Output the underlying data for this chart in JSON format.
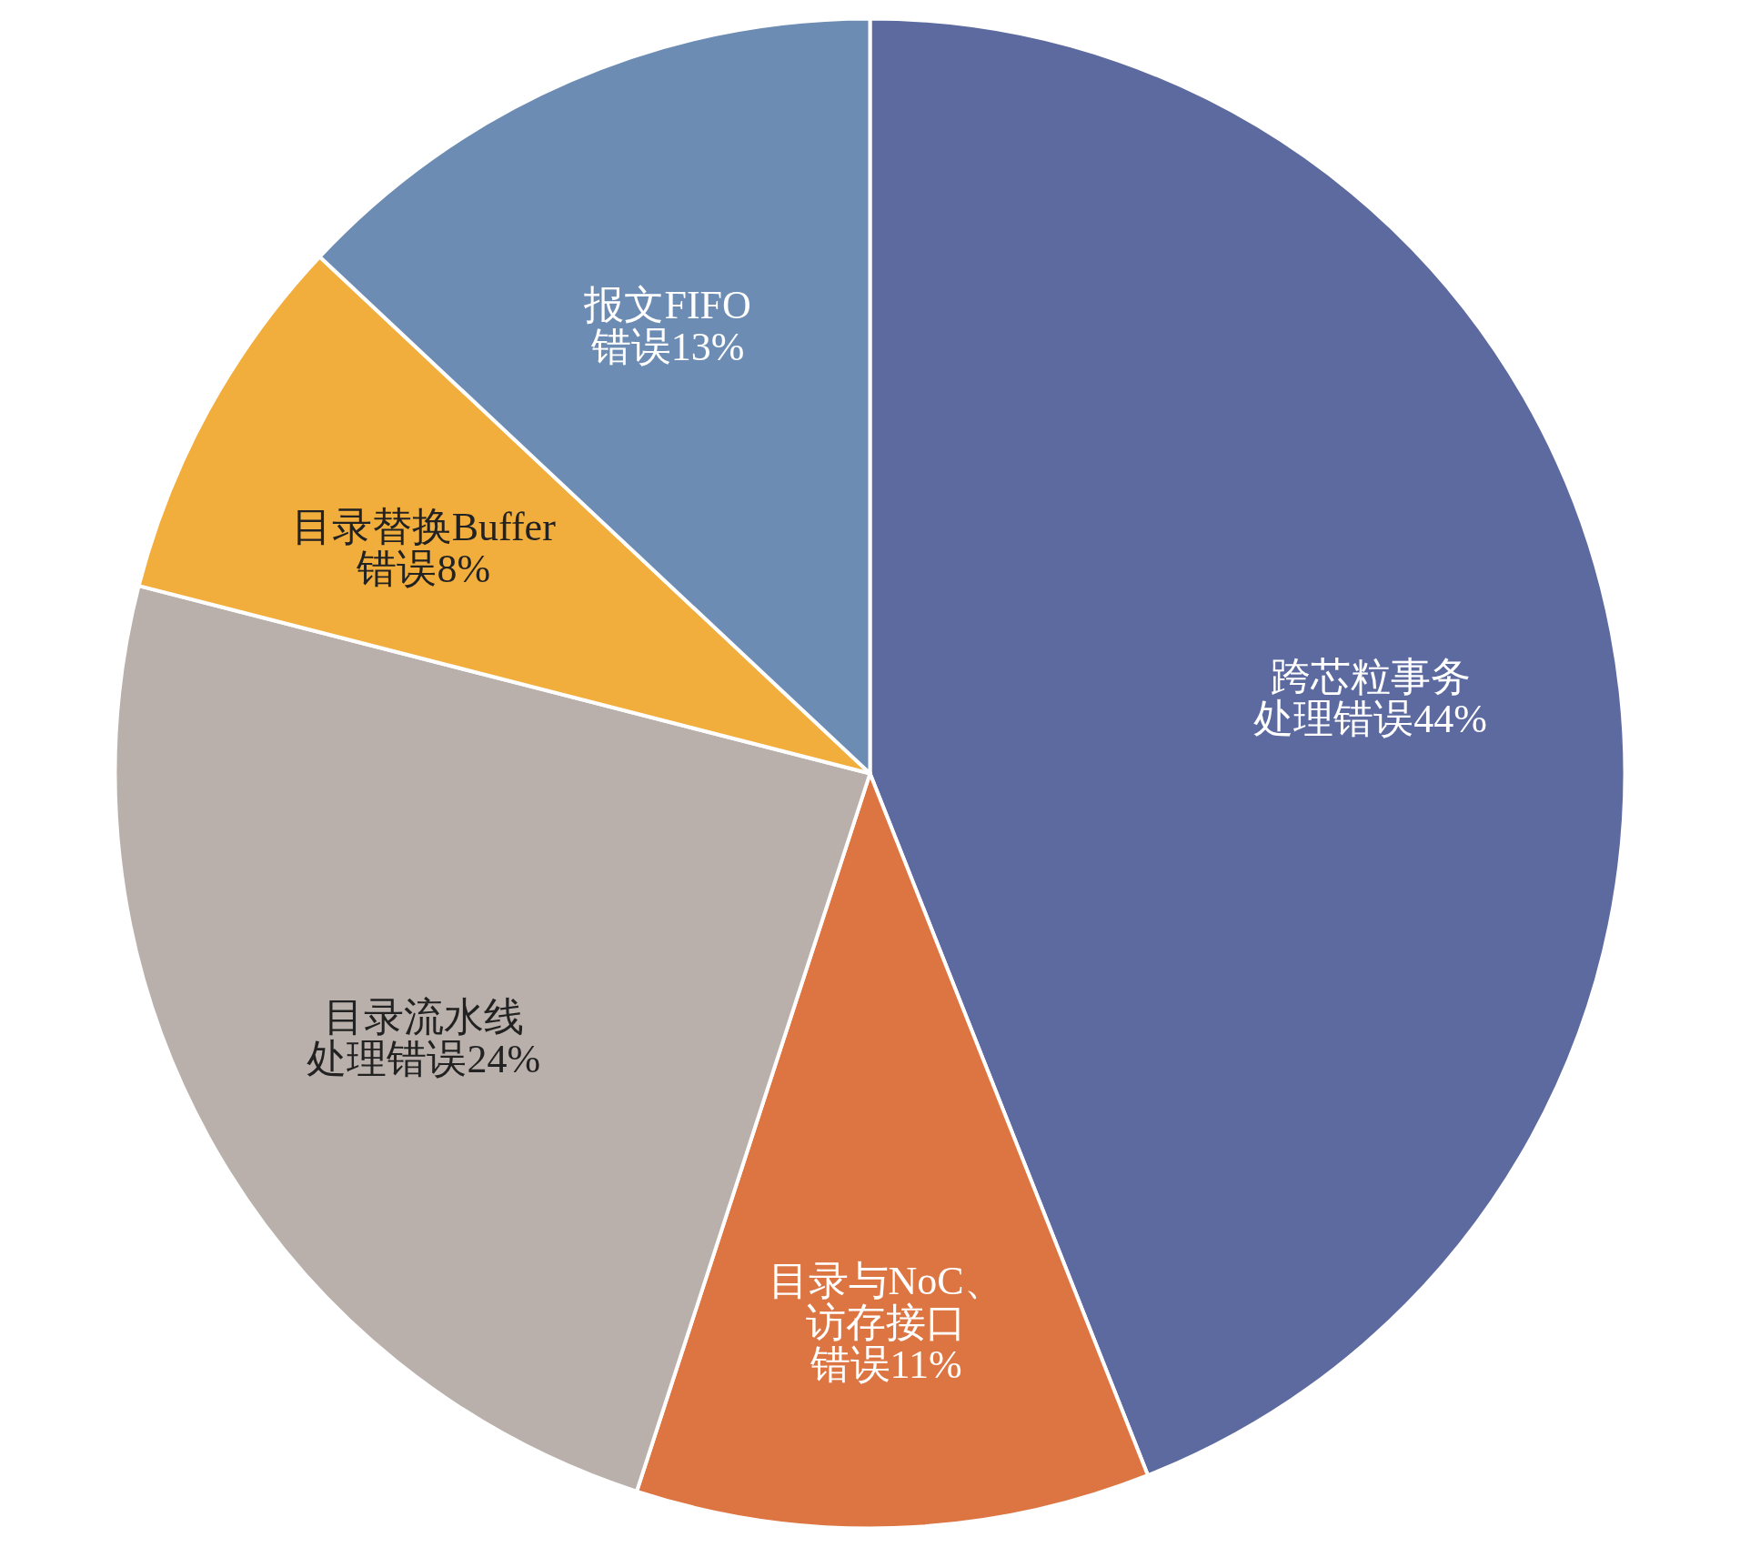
{
  "chart_data": {
    "type": "pie",
    "categories": [
      "跨芯粒事务处理错误",
      "目录与NoC、访存接口错误",
      "目录流水线处理错误",
      "目录替换Buffer错误",
      "报文FIFO错误"
    ],
    "values": [
      44,
      11,
      24,
      8,
      13
    ],
    "colors": [
      "#5c6aa0",
      "#dd7543",
      "#b9b0ac",
      "#f2ae3d",
      "#6d8cb3"
    ],
    "value_labels": [
      "44%",
      "11%",
      "24%",
      "8%",
      "13%"
    ],
    "legend": false
  }
}
